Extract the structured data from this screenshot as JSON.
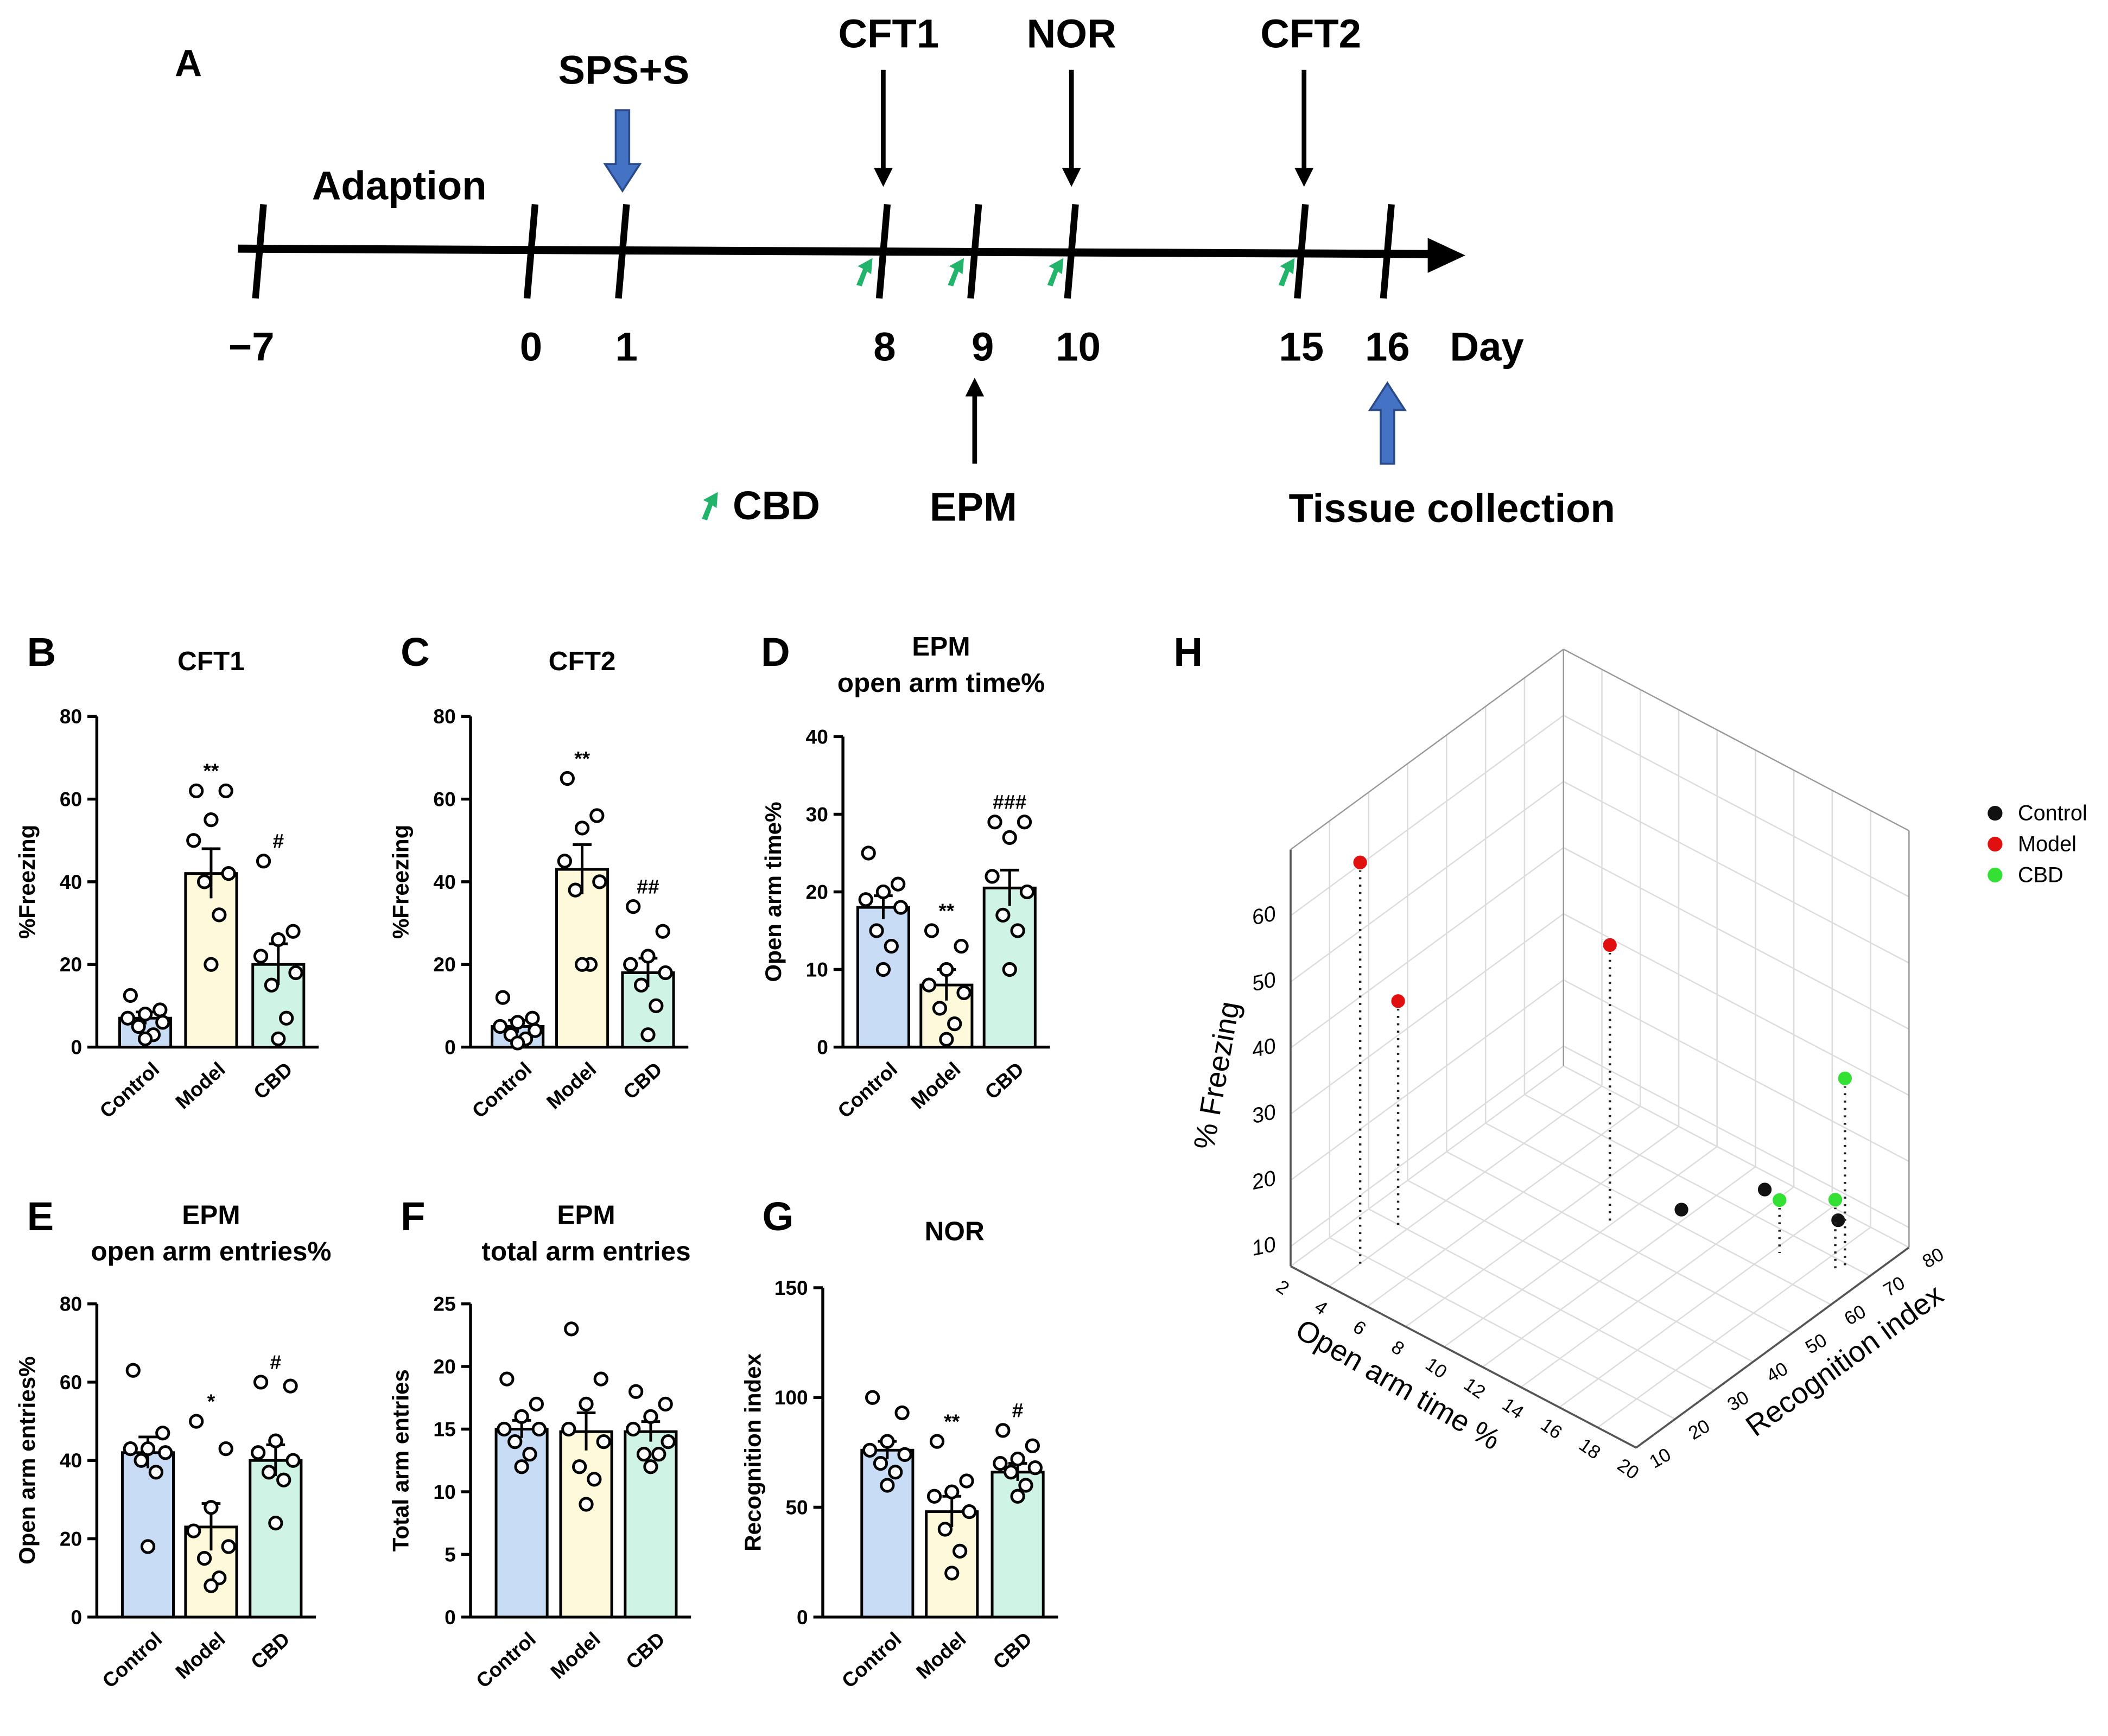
{
  "timeline": {
    "panel": "A",
    "phase": "Adaption",
    "events": [
      "SPS+S",
      "CFT1",
      "NOR",
      "CFT2",
      "EPM",
      "Tissue collection"
    ],
    "treatment": "CBD",
    "days": [
      {
        "value": -7,
        "label": "−7"
      },
      0,
      1,
      8,
      9,
      10,
      15,
      16
    ],
    "unit": "Day"
  },
  "chart_data": [
    {
      "type": "bar",
      "panel": "B",
      "title": [
        "CFT1"
      ],
      "ylabel": "%Freezing",
      "categories": [
        "Control",
        "Model",
        "CBD"
      ],
      "colors": [
        "#c9dcf5",
        "#fdf9da",
        "#cff3e4"
      ],
      "values": [
        7,
        42,
        20
      ],
      "errors": [
        1.5,
        6,
        5
      ],
      "points": [
        [
          12.5,
          9,
          8,
          7,
          6,
          5,
          3,
          2
        ],
        [
          62,
          62,
          55,
          50,
          42,
          40,
          32,
          20
        ],
        [
          45,
          28,
          26,
          22,
          18,
          15,
          7,
          2
        ]
      ],
      "annotations": [
        null,
        "**",
        "#"
      ],
      "ylim": [
        0,
        80
      ],
      "yticks": [
        0,
        20,
        40,
        60,
        80
      ]
    },
    {
      "type": "bar",
      "panel": "C",
      "title": [
        "CFT2"
      ],
      "ylabel": "%Freezing",
      "categories": [
        "Control",
        "Model",
        "CBD"
      ],
      "colors": [
        "#c9dcf5",
        "#fdf9da",
        "#cff3e4"
      ],
      "values": [
        5,
        43,
        18
      ],
      "errors": [
        1.5,
        6,
        3.5
      ],
      "points": [
        [
          12,
          7,
          6,
          5,
          4,
          3,
          2,
          1
        ],
        [
          65,
          56,
          53,
          45,
          40,
          38,
          20,
          20
        ],
        [
          34,
          28,
          22,
          20,
          18,
          15,
          10,
          3
        ]
      ],
      "annotations": [
        null,
        "**",
        "##"
      ],
      "ylim": [
        0,
        80
      ],
      "yticks": [
        0,
        20,
        40,
        60,
        80
      ]
    },
    {
      "type": "bar",
      "panel": "D",
      "title": [
        "EPM",
        "open arm time%"
      ],
      "ylabel": "Open arm time%",
      "categories": [
        "Control",
        "Model",
        "CBD"
      ],
      "colors": [
        "#c9dcf5",
        "#fdf9da",
        "#cff3e4"
      ],
      "values": [
        18,
        8,
        20.5
      ],
      "errors": [
        1.5,
        2,
        2.3
      ],
      "points": [
        [
          25,
          21,
          20,
          19,
          18,
          15,
          13,
          10
        ],
        [
          15,
          13,
          10,
          8,
          7,
          5,
          3,
          1
        ],
        [
          29,
          29,
          27,
          22,
          20,
          17,
          15,
          10
        ]
      ],
      "annotations": [
        null,
        "**",
        "###"
      ],
      "ylim": [
        0,
        40
      ],
      "yticks": [
        0,
        10,
        20,
        30,
        40
      ]
    },
    {
      "type": "bar",
      "panel": "E",
      "title": [
        "EPM",
        "open arm entries%"
      ],
      "ylabel": "Open arm entries%",
      "categories": [
        "Control",
        "Model",
        "CBD"
      ],
      "colors": [
        "#c9dcf5",
        "#fdf9da",
        "#cff3e4"
      ],
      "values": [
        42,
        23,
        40
      ],
      "errors": [
        4,
        6,
        4
      ],
      "points": [
        [
          63,
          47,
          43,
          43,
          42,
          40,
          37,
          18
        ],
        [
          50,
          43,
          28,
          22,
          18,
          15,
          10,
          8
        ],
        [
          60,
          59,
          45,
          42,
          40,
          37,
          35,
          24
        ]
      ],
      "annotations": [
        null,
        "*",
        "#"
      ],
      "ylim": [
        0,
        80
      ],
      "yticks": [
        0,
        20,
        40,
        60,
        80
      ]
    },
    {
      "type": "bar",
      "panel": "F",
      "title": [
        "EPM",
        "total arm entries"
      ],
      "ylabel": "Total arm entries",
      "categories": [
        "Control",
        "Model",
        "CBD"
      ],
      "colors": [
        "#c9dcf5",
        "#fdf9da",
        "#cff3e4"
      ],
      "values": [
        15,
        14.8,
        14.8
      ],
      "errors": [
        0.7,
        1.5,
        0.8
      ],
      "points": [
        [
          19,
          17,
          16,
          15,
          15,
          14,
          13,
          12
        ],
        [
          23,
          19,
          17,
          15,
          14,
          12,
          11,
          9
        ],
        [
          18,
          17,
          16,
          15,
          14,
          13,
          13,
          12
        ]
      ],
      "ylim": [
        0,
        25
      ],
      "yticks": [
        0,
        5,
        10,
        15,
        20,
        25
      ]
    },
    {
      "type": "bar",
      "panel": "G",
      "title": [
        "NOR"
      ],
      "ylabel": "Recognition index",
      "categories": [
        "Control",
        "Model",
        "CBD"
      ],
      "colors": [
        "#c9dcf5",
        "#fdf9da",
        "#cff3e4"
      ],
      "values": [
        76,
        48,
        66
      ],
      "errors": [
        4,
        7,
        4
      ],
      "points": [
        [
          100,
          93,
          80,
          76,
          74,
          70,
          66,
          60
        ],
        [
          80,
          62,
          57,
          55,
          48,
          40,
          30,
          20
        ],
        [
          85,
          78,
          72,
          70,
          68,
          66,
          60,
          55
        ]
      ],
      "annotations": [
        null,
        "**",
        "#"
      ],
      "ylim": [
        0,
        150
      ],
      "yticks": [
        0,
        50,
        100,
        150
      ]
    },
    {
      "type": "scatter3d",
      "panel": "H",
      "xlabel": "Open arm time %",
      "ylabel": "Recognition index",
      "zlabel": "% Freezing",
      "series": [
        {
          "name": "Control",
          "color": "#111111",
          "x": [
            11.8,
            13.5,
            17
          ],
          "y": [
            62,
            75,
            76.6
          ],
          "z": [
            8,
            8,
            8
          ]
        },
        {
          "name": "Model",
          "color": "#e01010",
          "x": [
            4.1,
            3.6,
            9.9
          ],
          "y": [
            17.5,
            29.7,
            53
          ],
          "z": [
            68,
            41,
            49
          ]
        },
        {
          "name": "CBD",
          "color": "#33e033",
          "x": [
            16.3,
            19,
            18.8
          ],
          "y": [
            65,
            68.5,
            67
          ],
          "z": [
            15,
            36,
            18
          ]
        }
      ],
      "xlim": [
        2,
        20
      ],
      "xticks": [
        2,
        4,
        6,
        8,
        10,
        12,
        14,
        16,
        18,
        20
      ],
      "ylim": [
        10,
        80
      ],
      "yticks": [
        10,
        20,
        30,
        40,
        50,
        60,
        70,
        80
      ],
      "zlim": [
        7,
        70
      ],
      "zticks": [
        10,
        20,
        30,
        40,
        50,
        60
      ]
    }
  ]
}
